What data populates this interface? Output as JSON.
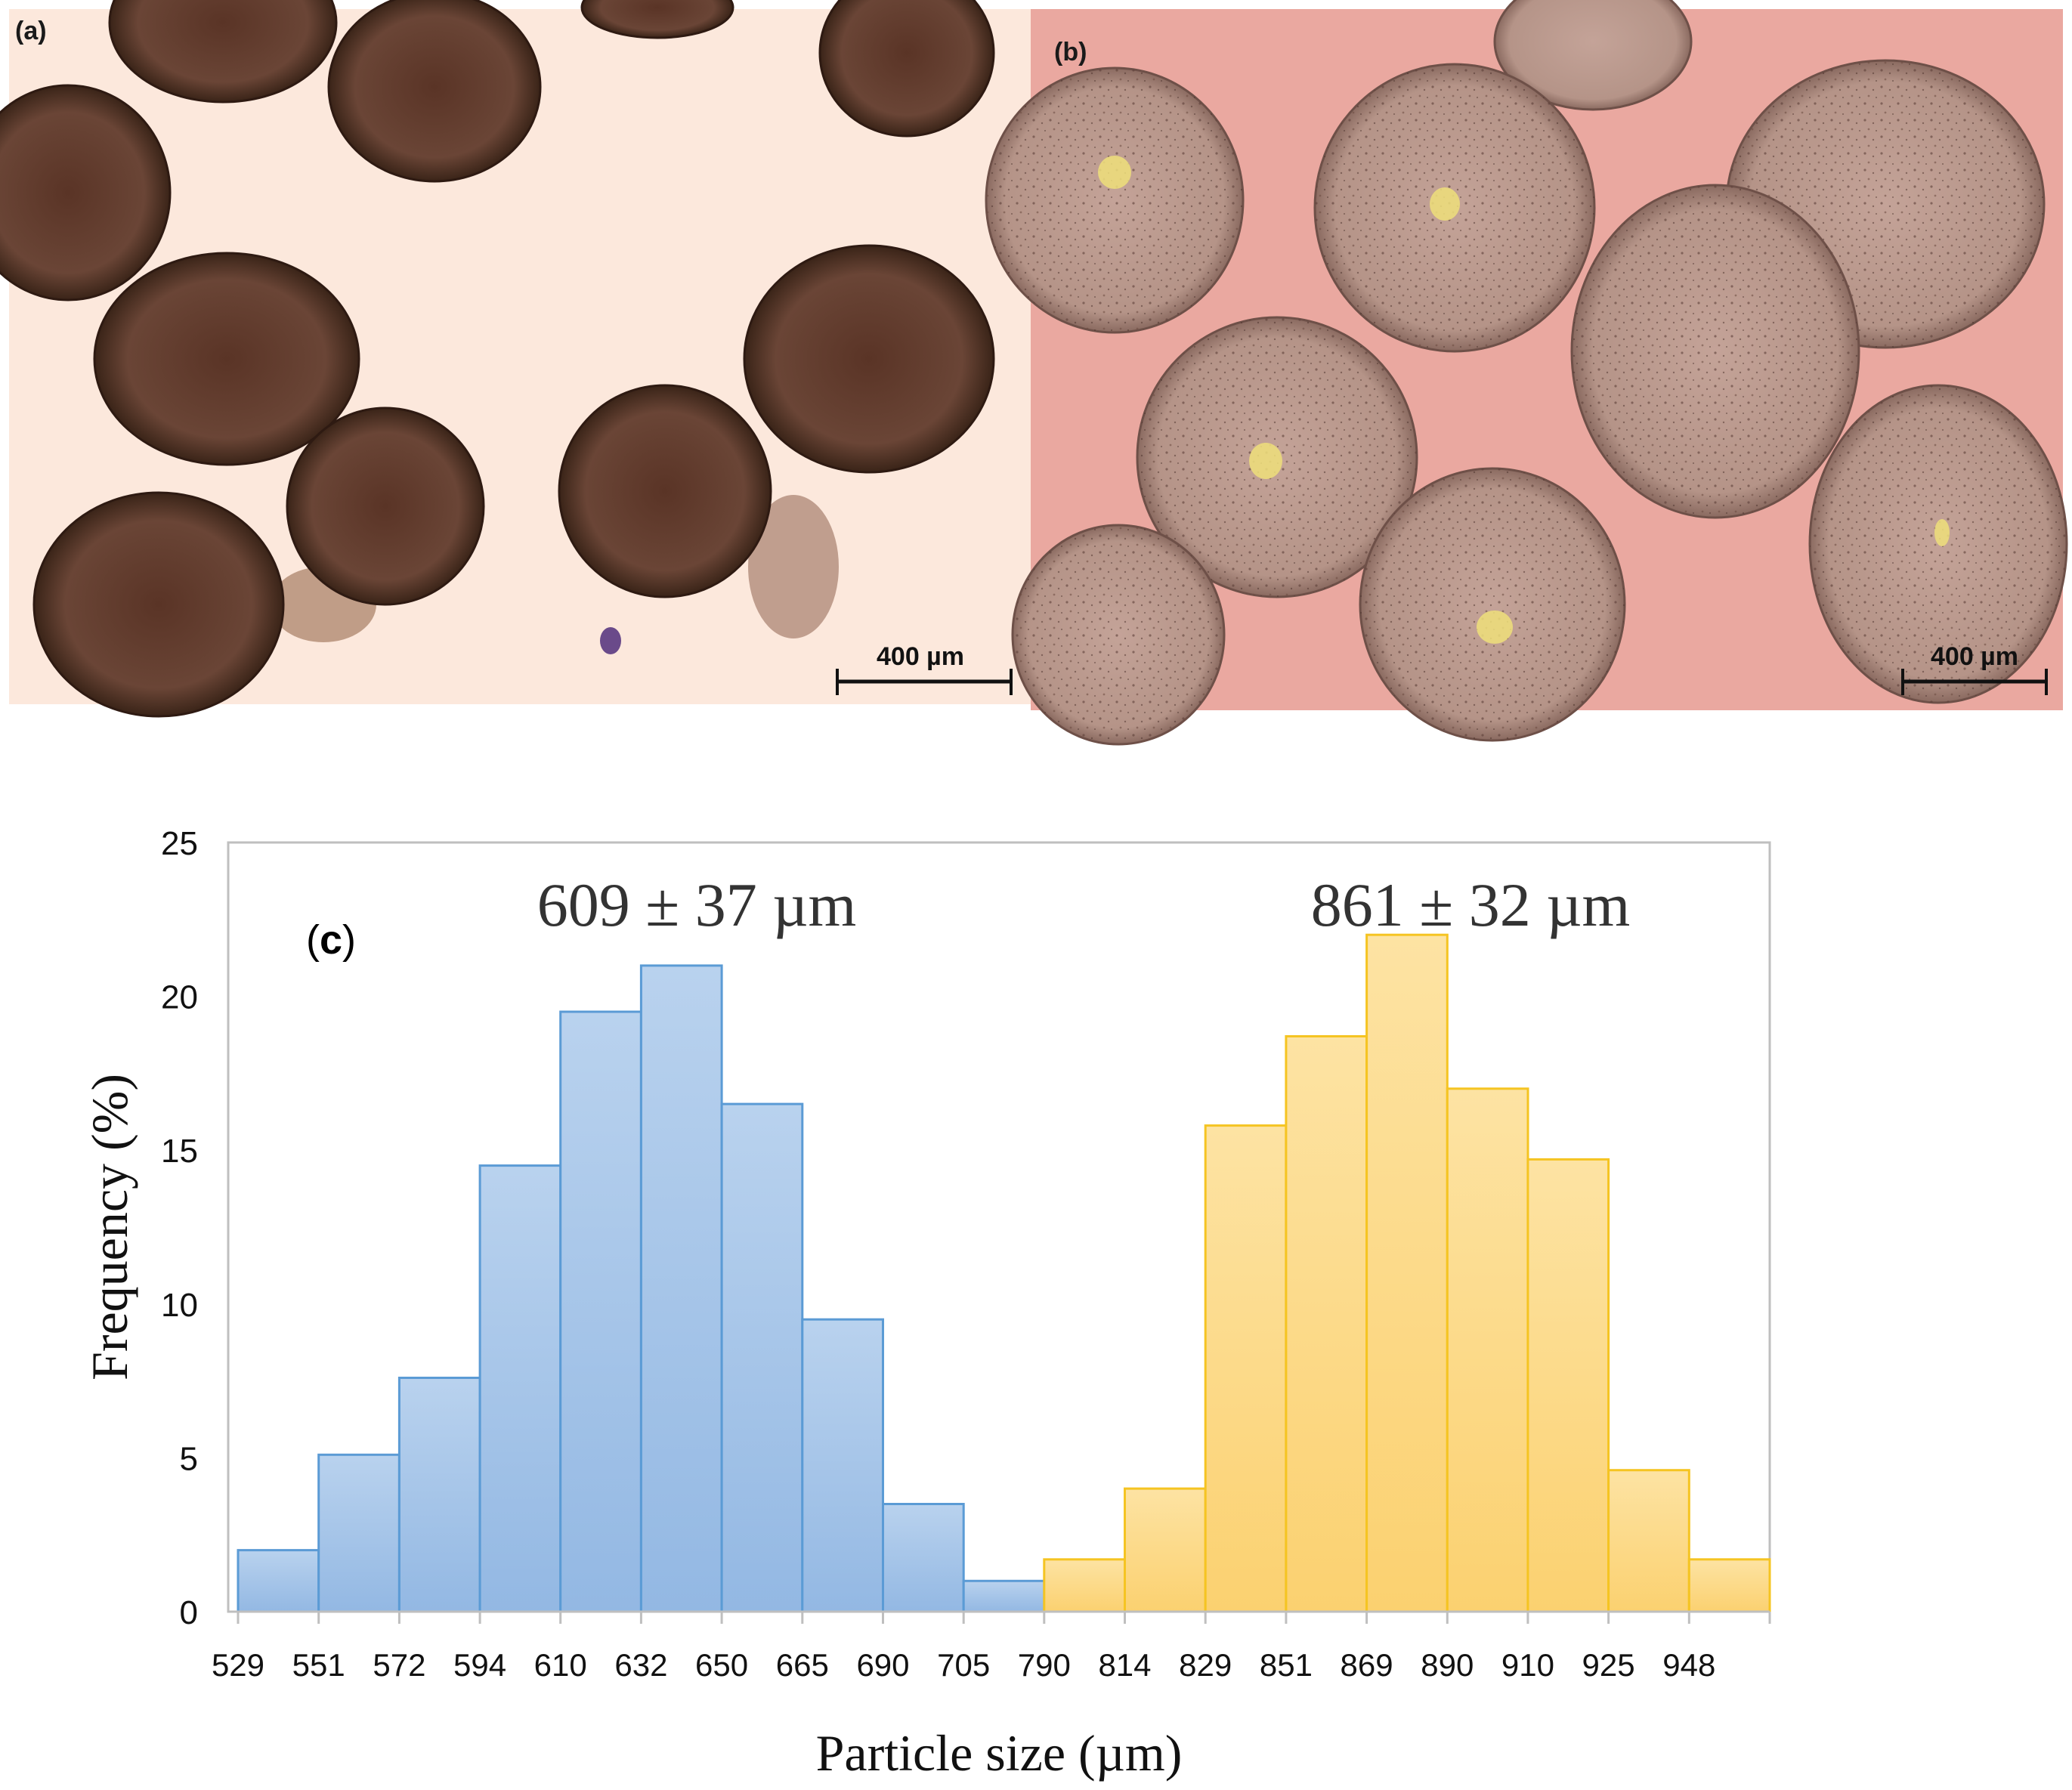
{
  "panels": {
    "a": {
      "label": "(a)",
      "scale_bar": "400 µm"
    },
    "b": {
      "label": "(b)",
      "scale_bar": "400 µm"
    }
  },
  "chart_data": {
    "type": "bar",
    "panel_label_prefix": "(",
    "panel_label_letter": "c",
    "panel_label_suffix": ")",
    "xlabel": "Particle size (µm)",
    "ylabel": "Frequency (%)",
    "ylim": [
      0,
      25
    ],
    "yticks": [
      0,
      5,
      10,
      15,
      20,
      25
    ],
    "grid": false,
    "categories": [
      "529",
      "551",
      "572",
      "594",
      "610",
      "632",
      "650",
      "665",
      "690",
      "705",
      "790",
      "814",
      "829",
      "851",
      "869",
      "890",
      "910",
      "925",
      "948"
    ],
    "series": [
      {
        "annotation": "609 ± 37 µm",
        "color": "#9dbfe6",
        "edge": "#5b9bd5",
        "values": [
          2.0,
          5.1,
          7.6,
          14.5,
          19.5,
          21.0,
          16.5,
          9.5,
          3.5,
          1.0,
          null,
          null,
          null,
          null,
          null,
          null,
          null,
          null,
          null
        ]
      },
      {
        "annotation": "861 ± 32 µm",
        "color": "#fbd77f",
        "edge": "#f5c422",
        "values": [
          null,
          null,
          null,
          null,
          null,
          null,
          null,
          null,
          null,
          null,
          1.7,
          4.0,
          15.8,
          18.7,
          22.0,
          17.0,
          14.7,
          4.6,
          1.7
        ]
      }
    ]
  }
}
